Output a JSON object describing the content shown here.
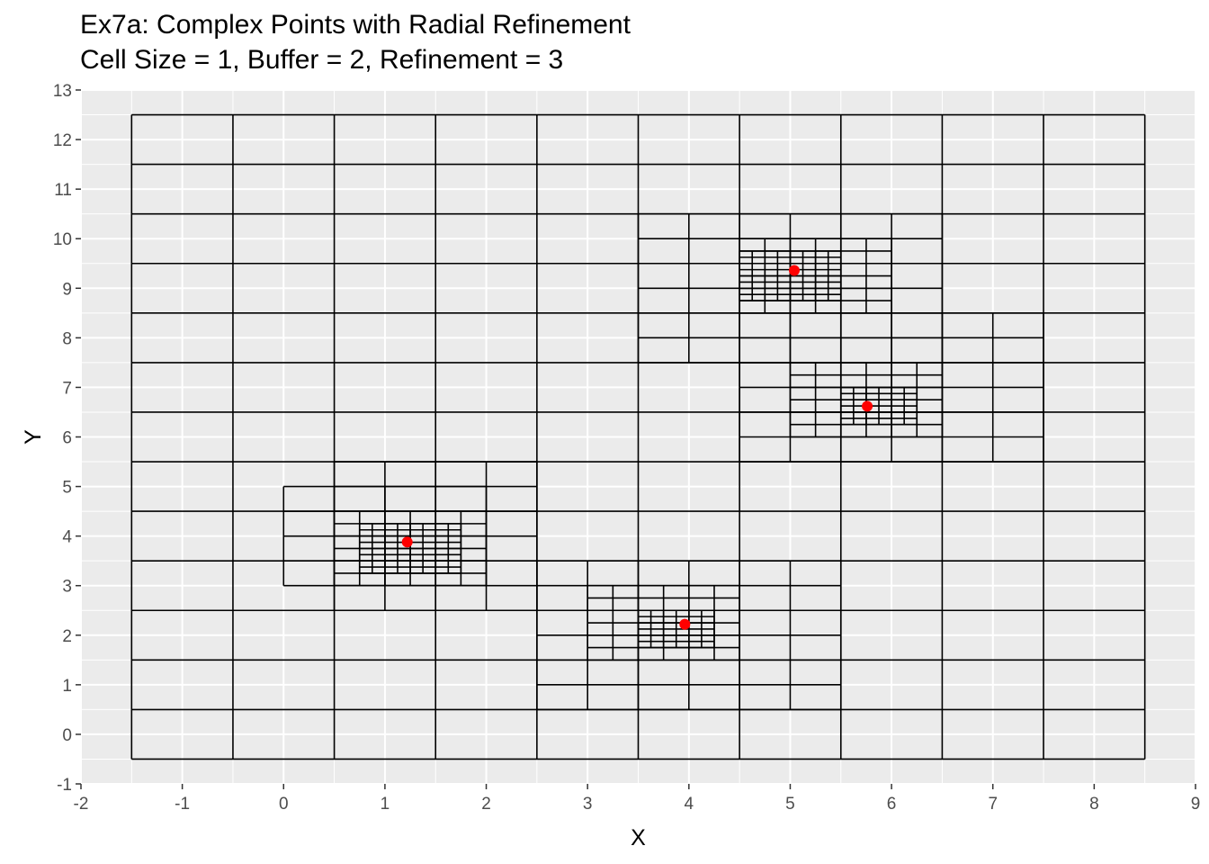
{
  "chart_data": {
    "type": "scatter",
    "title": "Ex7a: Complex Points with Radial Refinement",
    "subtitle": "Cell Size = 1, Buffer = 2, Refinement = 3",
    "xlabel": "X",
    "ylabel": "Y",
    "xlim": [
      -2,
      9
    ],
    "ylim": [
      -1,
      13
    ],
    "x_ticks": [
      "-2",
      "-1",
      "0",
      "1",
      "2",
      "3",
      "4",
      "5",
      "6",
      "7",
      "8",
      "9"
    ],
    "y_ticks": [
      "-1",
      "0",
      "1",
      "2",
      "3",
      "4",
      "5",
      "6",
      "7",
      "8",
      "9",
      "10",
      "11",
      "12",
      "13"
    ],
    "grid": true,
    "legend": "none",
    "point_color": "#ff0000",
    "cell_line_color": "#000000",
    "panel_background": "#ebebeb",
    "points": [
      {
        "x": 1.22,
        "y": 3.88
      },
      {
        "x": 3.96,
        "y": 2.22
      },
      {
        "x": 5.04,
        "y": 9.36
      },
      {
        "x": 5.76,
        "y": 6.62
      }
    ],
    "grid_extent": {
      "xmin": -1.5,
      "xmax": 8.5,
      "ymin": -0.5,
      "ymax": 12.5
    },
    "refinement": {
      "cell_size": 1,
      "buffer": 2,
      "levels": 3,
      "regions": [
        {
          "x": [
            0,
            2
          ],
          "y": [
            3,
            5
          ],
          "cell_size": 0.5
        },
        {
          "x": [
            0.5,
            2.5
          ],
          "y": [
            2.5,
            5.5
          ],
          "cell_size": 0.5
        },
        {
          "x": [
            0.5,
            2
          ],
          "y": [
            3,
            4.5
          ],
          "cell_size": 0.25
        },
        {
          "x": [
            0.75,
            1.75
          ],
          "y": [
            3.25,
            4.25
          ],
          "cell_size": 0.125
        },
        {
          "x": [
            2.5,
            5.5
          ],
          "y": [
            0.5,
            3.5
          ],
          "cell_size": 0.5
        },
        {
          "x": [
            3,
            4.5
          ],
          "y": [
            1.5,
            3
          ],
          "cell_size": 0.25
        },
        {
          "x": [
            3.5,
            4.25
          ],
          "y": [
            1.75,
            2.5
          ],
          "cell_size": 0.125
        },
        {
          "x": [
            3.5,
            6.5
          ],
          "y": [
            7.5,
            10.5
          ],
          "cell_size": 0.5
        },
        {
          "x": [
            4.5,
            6
          ],
          "y": [
            8.5,
            10
          ],
          "cell_size": 0.25
        },
        {
          "x": [
            4.5,
            5.5
          ],
          "y": [
            8.75,
            9.75
          ],
          "cell_size": 0.125
        },
        {
          "x": [
            4.5,
            7.5
          ],
          "y": [
            5.5,
            8.5
          ],
          "cell_size": 0.5
        },
        {
          "x": [
            5,
            6.5
          ],
          "y": [
            6,
            7.5
          ],
          "cell_size": 0.25
        },
        {
          "x": [
            5.5,
            6.25
          ],
          "y": [
            6.25,
            7
          ],
          "cell_size": 0.125
        }
      ]
    }
  }
}
